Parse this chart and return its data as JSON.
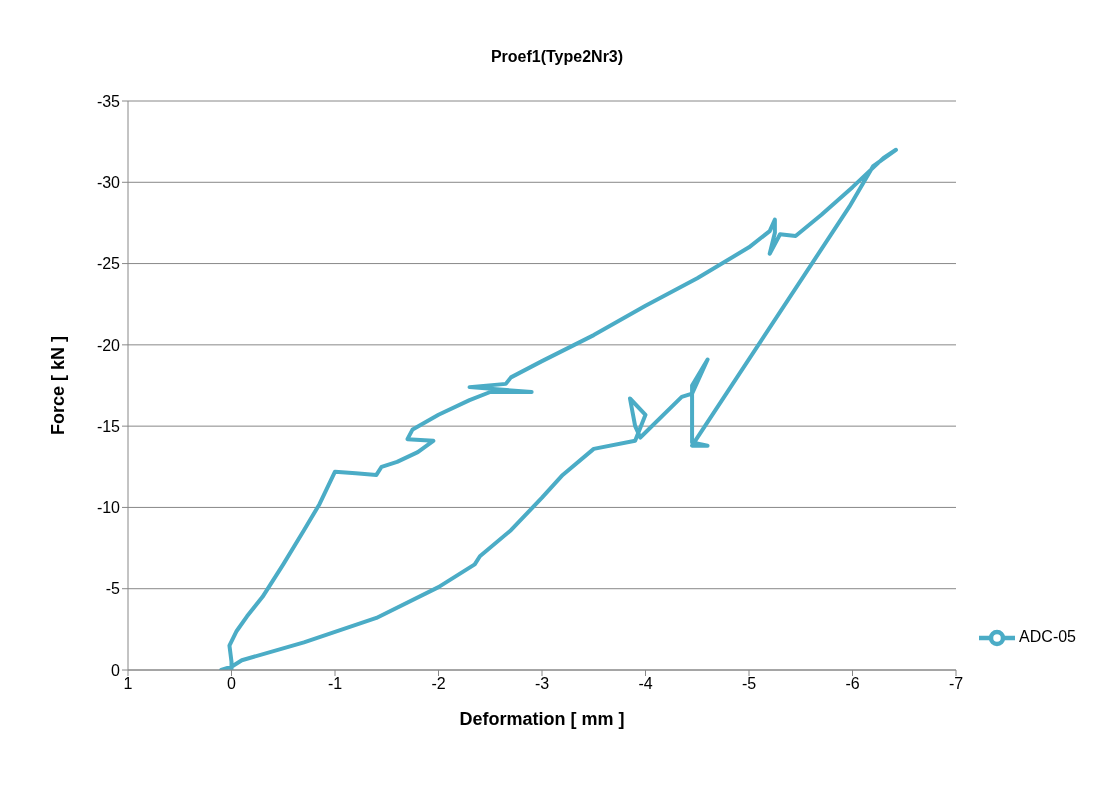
{
  "chart_data": {
    "type": "line",
    "title": "Proef1(Type2Nr3)",
    "xlabel": "Deformation [ mm ]",
    "ylabel": "Force [ kN ]",
    "xlim": [
      1,
      -7
    ],
    "xticks": [
      1,
      0,
      -1,
      -2,
      -3,
      -4,
      -5,
      -6,
      -7
    ],
    "ylim": [
      0,
      -35
    ],
    "yticks": [
      0,
      -5,
      -10,
      -15,
      -20,
      -25,
      -30,
      -35
    ],
    "grid": "y",
    "legend": "bottom right",
    "marker": "none",
    "line_style": "solid",
    "series": [
      {
        "name": "ADC-05",
        "color": "#4bacc6",
        "x": [
          0,
          0,
          0.02,
          -0.05,
          -0.15,
          -0.3,
          -0.5,
          -0.7,
          -0.85,
          -1,
          -1.2,
          -1.4,
          -1.45,
          -1.6,
          -1.8,
          -1.95,
          -1.7,
          -1.75,
          -2,
          -2.3,
          -2.5,
          -2.9,
          -2.3,
          -2.65,
          -2.7,
          -3,
          -3.5,
          -4,
          -4.5,
          -5,
          -5.2,
          -5.25,
          -5.25,
          -5.2,
          -5.3,
          -5.45,
          -5.7,
          -6,
          -6.3,
          -6.42,
          -6.2,
          -5.97,
          -4.45,
          -4.6,
          -4.45,
          -4.45,
          -4.6,
          -4.45,
          -4.35,
          -3.95,
          -3.9,
          -3.85,
          -4,
          -3.9,
          -3.5,
          -3.2,
          -3,
          -2.7,
          -2.4,
          -2.35,
          -2,
          -1.4,
          -0.7,
          -0.1,
          0,
          0.1
        ],
        "values": [
          0,
          -0.5,
          -1.5,
          -2.4,
          -3.3,
          -4.5,
          -6.5,
          -8.6,
          -10.2,
          -12.2,
          -12.1,
          -12,
          -12.5,
          -12.8,
          -13.4,
          -14.1,
          -14.2,
          -14.8,
          -15.7,
          -16.6,
          -17.1,
          -17.1,
          -17.4,
          -17.6,
          -18,
          -19,
          -20.6,
          -22.4,
          -24.1,
          -26,
          -27,
          -27.7,
          -26.9,
          -25.6,
          -26.8,
          -26.7,
          -28,
          -29.7,
          -31.5,
          -32,
          -31,
          -28.5,
          -13.8,
          -13.8,
          -14,
          -17.5,
          -19.1,
          -17,
          -16.8,
          -14.3,
          -15,
          -16.7,
          -15.7,
          -14.1,
          -13.6,
          -12,
          -10.6,
          -8.6,
          -7,
          -6.5,
          -5.1,
          -3.2,
          -1.7,
          -0.6,
          -0.2,
          0
        ]
      }
    ]
  }
}
